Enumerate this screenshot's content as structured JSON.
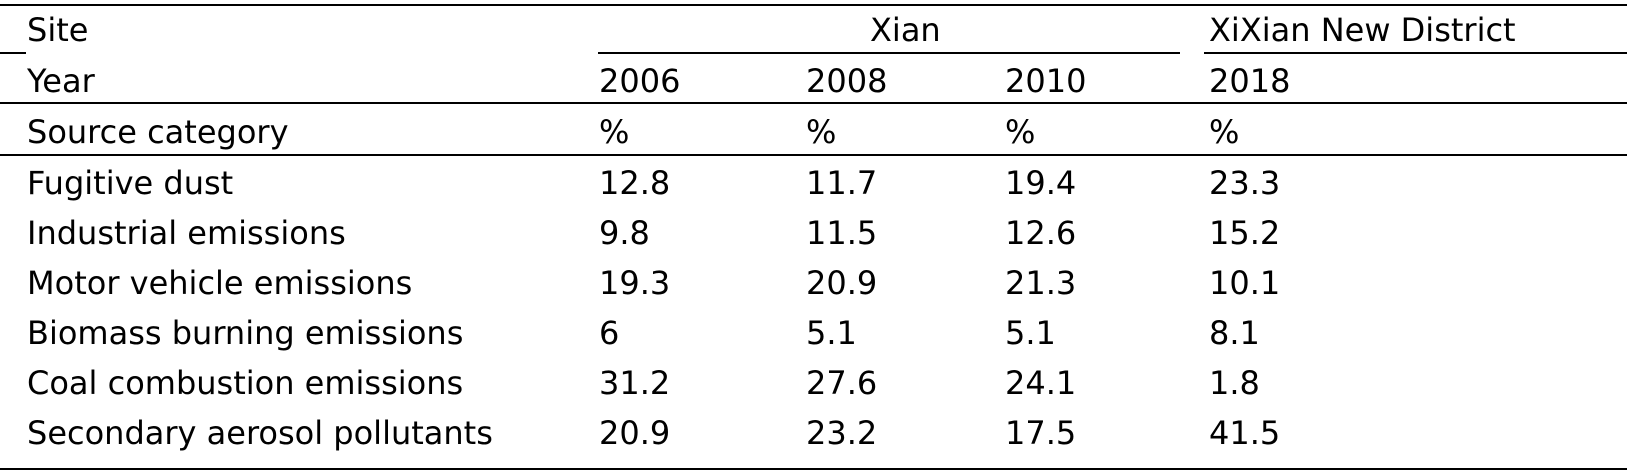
{
  "table": {
    "header_site": {
      "label": "Site",
      "group_xian": "Xian",
      "group_xixian": "XiXian New District"
    },
    "header_year": {
      "label": "Year",
      "years": [
        "2006",
        "2008",
        "2010",
        "2018"
      ]
    },
    "header_unit": {
      "label": "Source category",
      "units": [
        "%",
        "%",
        "%",
        "%"
      ]
    },
    "rows": [
      {
        "category": "Fugitive dust",
        "values": [
          "12.8",
          "11.7",
          "19.4",
          "23.3"
        ]
      },
      {
        "category": "Industrial emissions",
        "values": [
          "9.8",
          "11.5",
          "12.6",
          "15.2"
        ]
      },
      {
        "category": "Motor vehicle emissions",
        "values": [
          "19.3",
          "20.9",
          "21.3",
          "10.1"
        ]
      },
      {
        "category": "Biomass burning emissions",
        "values": [
          "6",
          "5.1",
          "5.1",
          "8.1"
        ]
      },
      {
        "category": "Coal combustion emissions",
        "values": [
          "31.2",
          "27.6",
          "24.1",
          "1.8"
        ]
      },
      {
        "category": "Secondary aerosol pollutants",
        "values": [
          "20.9",
          "23.2",
          "17.5",
          "41.5"
        ]
      }
    ]
  }
}
